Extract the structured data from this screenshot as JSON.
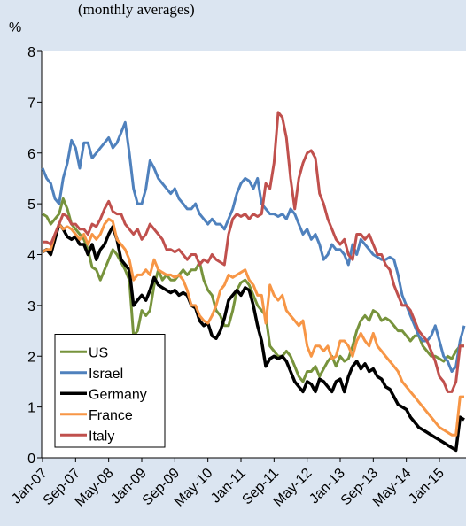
{
  "chart_data": {
    "type": "line",
    "subtitle": "(monthly averages)",
    "y_label": "%",
    "categories": [
      "Jan-07",
      null,
      null,
      null,
      null,
      null,
      null,
      null,
      "Sep-07",
      null,
      null,
      null,
      null,
      null,
      null,
      null,
      "May-08",
      null,
      null,
      null,
      null,
      null,
      null,
      null,
      "Jan-09",
      null,
      null,
      null,
      null,
      null,
      null,
      null,
      "Sep-09",
      null,
      null,
      null,
      null,
      null,
      null,
      null,
      "May-10",
      null,
      null,
      null,
      null,
      null,
      null,
      null,
      "Jan-11",
      null,
      null,
      null,
      null,
      null,
      null,
      null,
      "Sep-11",
      null,
      null,
      null,
      null,
      null,
      null,
      null,
      "May-12",
      null,
      null,
      null,
      null,
      null,
      null,
      null,
      "Jan-13",
      null,
      null,
      null,
      null,
      null,
      null,
      null,
      "Sep-13",
      null,
      null,
      null,
      null,
      null,
      null,
      null,
      "May-14",
      null,
      null,
      null,
      null,
      null,
      null,
      null,
      "Jan-15",
      null,
      null,
      null,
      null,
      null,
      null
    ],
    "series": [
      {
        "name": "US",
        "color": "#77933c",
        "values": [
          4.8,
          4.75,
          4.6,
          4.7,
          4.8,
          5.1,
          4.9,
          4.6,
          4.5,
          4.4,
          4.3,
          4.1,
          3.75,
          3.7,
          3.5,
          3.7,
          3.9,
          4.1,
          4.0,
          3.85,
          3.7,
          3.5,
          2.4,
          2.5,
          2.9,
          2.8,
          2.9,
          3.4,
          3.7,
          3.5,
          3.6,
          3.5,
          3.5,
          3.6,
          3.7,
          3.6,
          3.7,
          3.7,
          3.85,
          3.5,
          3.3,
          3.2,
          2.9,
          2.8,
          2.6,
          2.6,
          2.9,
          3.3,
          3.45,
          3.5,
          3.4,
          3.2,
          3.0,
          2.9,
          2.8,
          2.2,
          2.1,
          2.0,
          2.0,
          2.1,
          2.0,
          1.8,
          1.6,
          1.5,
          1.7,
          1.7,
          1.8,
          1.6,
          1.75,
          1.9,
          2.0,
          1.8,
          2.0,
          1.9,
          1.95,
          2.2,
          2.5,
          2.7,
          2.8,
          2.7,
          2.9,
          2.85,
          2.7,
          2.75,
          2.7,
          2.6,
          2.5,
          2.5,
          2.4,
          2.3,
          2.4,
          2.4,
          2.2,
          2.1,
          2.0,
          2.0,
          1.95,
          1.9,
          2.0,
          1.95,
          2.1,
          2.2,
          2.2
        ]
      },
      {
        "name": "Israel",
        "color": "#4f81bd",
        "values": [
          5.7,
          5.5,
          5.4,
          5.1,
          5.0,
          5.5,
          5.8,
          6.25,
          6.1,
          5.7,
          6.2,
          6.2,
          5.9,
          6.0,
          6.1,
          6.2,
          6.3,
          6.1,
          6.2,
          6.4,
          6.6,
          6.0,
          5.3,
          5.0,
          5.0,
          5.3,
          5.85,
          5.7,
          5.5,
          5.4,
          5.3,
          5.2,
          5.3,
          5.1,
          5.0,
          4.9,
          4.9,
          5.0,
          4.8,
          4.7,
          4.6,
          4.7,
          4.6,
          4.6,
          4.5,
          4.7,
          4.9,
          5.2,
          5.4,
          5.5,
          5.45,
          5.3,
          5.5,
          5.0,
          4.9,
          4.8,
          4.8,
          4.75,
          4.8,
          4.7,
          4.9,
          4.8,
          4.6,
          4.4,
          4.5,
          4.3,
          4.4,
          4.2,
          3.9,
          4.0,
          4.2,
          4.1,
          4.1,
          4.0,
          3.8,
          4.2,
          4.0,
          4.3,
          4.2,
          4.1,
          4.0,
          3.95,
          3.9,
          3.9,
          3.95,
          3.9,
          3.6,
          3.2,
          3.0,
          2.8,
          2.6,
          2.4,
          2.3,
          2.3,
          2.4,
          2.6,
          2.3,
          2.0,
          1.9,
          1.7,
          1.8,
          2.3,
          2.6
        ]
      },
      {
        "name": "Germany",
        "color": "#000000",
        "values": [
          4.05,
          4.1,
          4.0,
          4.3,
          4.6,
          4.5,
          4.35,
          4.3,
          4.35,
          4.2,
          4.2,
          4.0,
          4.2,
          3.9,
          4.1,
          4.2,
          4.4,
          4.55,
          4.3,
          3.9,
          3.8,
          3.7,
          3.0,
          3.1,
          3.2,
          3.1,
          3.3,
          3.55,
          3.4,
          3.35,
          3.3,
          3.25,
          3.3,
          3.2,
          3.25,
          3.2,
          3.0,
          2.95,
          2.7,
          2.6,
          2.65,
          2.4,
          2.35,
          2.5,
          2.75,
          3.1,
          3.2,
          3.3,
          3.2,
          3.35,
          3.3,
          3.0,
          2.6,
          2.3,
          1.8,
          1.95,
          2.0,
          1.95,
          2.0,
          1.9,
          1.7,
          1.5,
          1.4,
          1.3,
          1.5,
          1.45,
          1.3,
          1.55,
          1.5,
          1.4,
          1.3,
          1.5,
          1.55,
          1.3,
          1.6,
          1.8,
          1.9,
          1.75,
          1.85,
          1.7,
          1.75,
          1.6,
          1.55,
          1.4,
          1.35,
          1.2,
          1.05,
          1.0,
          0.95,
          0.8,
          0.7,
          0.6,
          0.55,
          0.5,
          0.45,
          0.4,
          0.35,
          0.3,
          0.25,
          0.2,
          0.15,
          0.8,
          0.75
        ]
      },
      {
        "name": "France",
        "color": "#f79646",
        "values": [
          4.05,
          4.1,
          4.1,
          4.4,
          4.6,
          4.5,
          4.55,
          4.5,
          4.4,
          4.3,
          4.4,
          4.2,
          4.4,
          4.3,
          4.4,
          4.6,
          4.7,
          4.65,
          4.3,
          4.2,
          4.1,
          3.9,
          3.5,
          3.6,
          3.6,
          3.7,
          3.6,
          3.9,
          3.7,
          3.65,
          3.6,
          3.6,
          3.55,
          3.6,
          3.5,
          3.3,
          3.0,
          3.0,
          2.8,
          2.7,
          2.65,
          2.8,
          3.0,
          3.3,
          3.4,
          3.6,
          3.55,
          3.6,
          3.65,
          3.7,
          3.5,
          3.4,
          3.2,
          3.2,
          2.65,
          3.4,
          3.2,
          3.1,
          3.2,
          2.9,
          2.8,
          2.7,
          2.6,
          2.7,
          2.2,
          2.0,
          2.2,
          2.2,
          2.1,
          2.2,
          1.95,
          2.0,
          2.3,
          2.3,
          2.2,
          2.0,
          2.3,
          2.45,
          2.3,
          2.2,
          2.45,
          2.2,
          2.1,
          2.0,
          1.9,
          1.8,
          1.7,
          1.5,
          1.4,
          1.3,
          1.2,
          1.1,
          1.0,
          0.9,
          0.8,
          0.7,
          0.6,
          0.55,
          0.5,
          0.45,
          0.45,
          1.2,
          1.2
        ]
      },
      {
        "name": "Italy",
        "color": "#c0504d",
        "values": [
          4.25,
          4.25,
          4.2,
          4.4,
          4.6,
          4.8,
          4.75,
          4.6,
          4.6,
          4.5,
          4.5,
          4.4,
          4.6,
          4.55,
          4.7,
          4.9,
          5.05,
          4.85,
          4.8,
          4.8,
          4.6,
          4.5,
          4.4,
          4.5,
          4.3,
          4.4,
          4.6,
          4.5,
          4.4,
          4.3,
          4.1,
          4.1,
          4.05,
          4.1,
          4.0,
          3.9,
          4.0,
          4.0,
          3.8,
          3.9,
          3.85,
          4.0,
          3.9,
          3.85,
          3.8,
          4.4,
          4.7,
          4.8,
          4.75,
          4.8,
          4.7,
          4.8,
          4.75,
          4.8,
          5.4,
          5.3,
          5.8,
          6.8,
          6.7,
          6.3,
          5.5,
          4.9,
          5.5,
          5.8,
          6.0,
          6.05,
          5.9,
          5.2,
          5.0,
          4.7,
          4.5,
          4.3,
          4.2,
          4.3,
          4.0,
          3.9,
          4.4,
          4.4,
          4.3,
          4.4,
          4.2,
          4.0,
          4.0,
          3.8,
          3.7,
          3.4,
          3.2,
          3.0,
          3.0,
          2.9,
          2.7,
          2.5,
          2.4,
          2.3,
          2.1,
          1.9,
          1.6,
          1.5,
          1.3,
          1.3,
          1.5,
          2.2,
          2.2
        ]
      }
    ],
    "ylim": [
      0,
      8
    ],
    "yticks": [
      0,
      1,
      2,
      3,
      4,
      5,
      6,
      7,
      8
    ],
    "grid": false,
    "legend": "lower left"
  }
}
